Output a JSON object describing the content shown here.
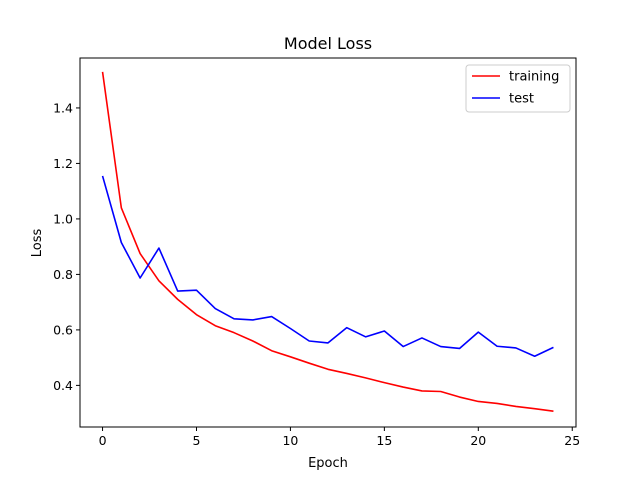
{
  "chart_data": {
    "type": "line",
    "title": "Model Loss",
    "xlabel": "Epoch",
    "ylabel": "Loss",
    "xlim": [
      -1.2,
      25.2
    ],
    "ylim": [
      0.25,
      1.58
    ],
    "xticks": [
      0,
      5,
      10,
      15,
      20,
      25
    ],
    "yticks": [
      0.4,
      0.6,
      0.8,
      1.0,
      1.2,
      1.4
    ],
    "xtick_labels": [
      "0",
      "5",
      "10",
      "15",
      "20",
      "25"
    ],
    "ytick_labels": [
      "0.4",
      "0.6",
      "0.8",
      "1.0",
      "1.2",
      "1.4"
    ],
    "grid": false,
    "legend_position": "top-right",
    "x": [
      0,
      1,
      2,
      3,
      4,
      5,
      6,
      7,
      8,
      9,
      10,
      11,
      12,
      13,
      14,
      15,
      16,
      17,
      18,
      19,
      20,
      21,
      22,
      23,
      24
    ],
    "series": [
      {
        "name": "training",
        "color": "#ff0000",
        "values": [
          1.53,
          1.04,
          0.875,
          0.777,
          0.71,
          0.655,
          0.615,
          0.59,
          0.56,
          0.525,
          0.503,
          0.48,
          0.458,
          0.443,
          0.427,
          0.41,
          0.394,
          0.38,
          0.378,
          0.358,
          0.342,
          0.335,
          0.324,
          0.316,
          0.307
        ]
      },
      {
        "name": "test",
        "color": "#0000ff",
        "values": [
          1.155,
          0.915,
          0.787,
          0.895,
          0.74,
          0.743,
          0.677,
          0.64,
          0.636,
          0.648,
          0.605,
          0.56,
          0.553,
          0.608,
          0.575,
          0.596,
          0.54,
          0.571,
          0.54,
          0.533,
          0.592,
          0.541,
          0.535,
          0.505,
          0.537
        ]
      }
    ]
  }
}
